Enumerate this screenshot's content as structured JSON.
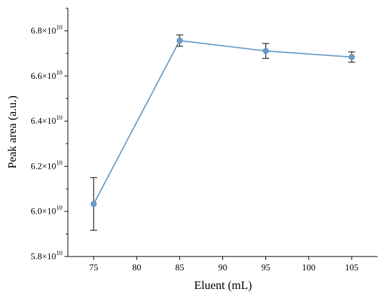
{
  "chart_data": {
    "type": "line",
    "xlabel": "Eluent (mL)",
    "ylabel": "Peak area (a.u.)",
    "xlim": [
      72,
      108
    ],
    "ylim": [
      58000000000.0,
      69000000000.0
    ],
    "x_ticks": [
      75,
      80,
      85,
      90,
      95,
      100,
      105
    ],
    "x_tick_labels": [
      "75",
      "80",
      "85",
      "90",
      "95",
      "100",
      "105"
    ],
    "y_ticks": [
      58000000000.0,
      60000000000.0,
      62000000000.0,
      64000000000.0,
      66000000000.0,
      68000000000.0
    ],
    "y_tick_labels": [
      {
        "mantissa": "5.8",
        "times": "×10",
        "exp": "10"
      },
      {
        "mantissa": "6.0",
        "times": "×10",
        "exp": "10"
      },
      {
        "mantissa": "6.2",
        "times": "×10",
        "exp": "10"
      },
      {
        "mantissa": "6.4",
        "times": "×10",
        "exp": "10"
      },
      {
        "mantissa": "6.6",
        "times": "×10",
        "exp": "10"
      },
      {
        "mantissa": "6.8",
        "times": "×10",
        "exp": "10"
      }
    ],
    "grid": false,
    "series": [
      {
        "x": [
          75,
          85,
          95,
          105
        ],
        "values": [
          60330000000.0,
          67570000000.0,
          67110000000.0,
          66840000000.0
        ],
        "error": [
          1170000000.0,
          250000000.0,
          330000000.0,
          230000000.0
        ],
        "color": "#6a9ac6",
        "marker": "circle"
      }
    ],
    "errorbar_color": "#333333",
    "axis_color": "#000000"
  }
}
